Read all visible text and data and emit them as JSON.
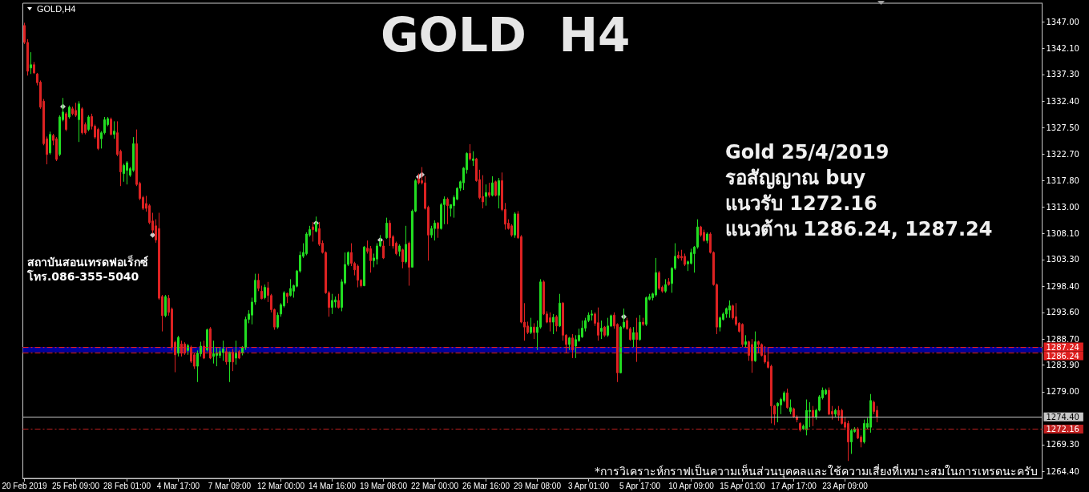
{
  "chart_data": {
    "type": "candlestick",
    "title": "GOLD  H4",
    "annotations": [
      "GOLD,H4",
      "Gold 25/4/2019",
      "รอสัญญาณ buy",
      "แนวรับ 1272.16",
      "แนวต้าน 1286.24, 1287.24",
      "สถาบันสอนเทรดฟอเร็กซ์",
      "โทร.086-355-5040",
      "*การวิเคราะห์กราฟเป็นความเห็นส่วนบุคคลและใช้ความเสี่ยงที่เหมาะสมในการเทรดนะครับ"
    ],
    "categories": [
      "20 Feb 2019",
      null,
      null,
      null,
      null,
      null,
      null,
      null,
      null,
      null,
      null,
      null,
      null,
      null,
      null,
      null,
      "25 Feb 09:00",
      null,
      null,
      null,
      null,
      null,
      null,
      null,
      null,
      null,
      null,
      null,
      null,
      null,
      null,
      null,
      "28 Feb 01:00",
      null,
      null,
      null,
      null,
      null,
      null,
      null,
      null,
      null,
      null,
      null,
      null,
      null,
      null,
      null,
      "4 Mar 17:00",
      null,
      null,
      null,
      null,
      null,
      null,
      null,
      null,
      null,
      null,
      null,
      null,
      null,
      null,
      null,
      "7 Mar 09:00",
      null,
      null,
      null,
      null,
      null,
      null,
      null,
      null,
      null,
      null,
      null,
      null,
      null,
      null,
      null,
      "12 Mar 00:00",
      null,
      null,
      null,
      null,
      null,
      null,
      null,
      null,
      null,
      null,
      null,
      null,
      null,
      null,
      null,
      "14 Mar 16:00",
      null,
      null,
      null,
      null,
      null,
      null,
      null,
      null,
      null,
      null,
      null,
      null,
      null,
      null,
      null,
      "19 Mar 08:00",
      null,
      null,
      null,
      null,
      null,
      null,
      null,
      null,
      null,
      null,
      null,
      null,
      null,
      null,
      null,
      "22 Mar 00:00",
      null,
      null,
      null,
      null,
      null,
      null,
      null,
      null,
      null,
      null,
      null,
      null,
      null,
      null,
      null,
      "26 Mar 16:00",
      null,
      null,
      null,
      null,
      null,
      null,
      null,
      null,
      null,
      null,
      null,
      null,
      null,
      null,
      null,
      "29 Mar 08:00",
      null,
      null,
      null,
      null,
      null,
      null,
      null,
      null,
      null,
      null,
      null,
      null,
      null,
      null,
      null,
      "3 Apr 01:00",
      null,
      null,
      null,
      null,
      null,
      null,
      null,
      null,
      null,
      null,
      null,
      null,
      null,
      null,
      null,
      "5 Apr 17:00",
      null,
      null,
      null,
      null,
      null,
      null,
      null,
      null,
      null,
      null,
      null,
      null,
      null,
      null,
      null,
      "10 Apr 09:00",
      null,
      null,
      null,
      null,
      null,
      null,
      null,
      null,
      null,
      null,
      null,
      null,
      null,
      null,
      null,
      "15 Apr 01:00",
      null,
      null,
      null,
      null,
      null,
      null,
      null,
      null,
      null,
      null,
      null,
      null,
      null,
      null,
      null,
      "17 Apr 17:00",
      null,
      null,
      null,
      null,
      null,
      null,
      null,
      null,
      null,
      null,
      null,
      null,
      null,
      null,
      null,
      "23 Apr 09:00",
      null,
      null,
      null,
      null,
      null,
      null,
      null,
      null,
      null,
      null,
      null,
      null,
      null,
      null,
      null,
      null,
      null,
      null,
      null,
      null,
      null,
      null,
      null,
      null,
      null,
      null,
      null,
      null,
      null,
      null,
      null,
      null,
      null,
      null,
      null,
      null,
      null,
      null,
      null,
      null,
      null,
      null,
      null,
      null,
      null,
      null,
      null,
      null,
      null,
      null,
      null,
      null,
      null,
      null,
      null,
      null,
      null,
      null,
      null,
      null,
      null
    ],
    "ohlc": [
      [
        1346.3,
        1346.8,
        1342.9,
        1343.2
      ],
      [
        1343.2,
        1343.8,
        1337.1,
        1337.9
      ],
      [
        1338.5,
        1341.4,
        1337.4,
        1339.1
      ],
      [
        1339.1,
        1339.6,
        1337.4,
        1337.6
      ],
      [
        1337.4,
        1337.6,
        1335.3,
        1335.8
      ],
      [
        1335.9,
        1336.2,
        1331.0,
        1331.3
      ],
      [
        1332.4,
        1332.8,
        1324.3,
        1324.6
      ],
      [
        1325.5,
        1325.9,
        1320.8,
        1322.6
      ],
      [
        1322.9,
        1326.8,
        1322.6,
        1326.3
      ],
      [
        1326.1,
        1326.4,
        1324.3,
        1325.2
      ],
      [
        1325.5,
        1325.8,
        1321.4,
        1321.7
      ],
      [
        1322.6,
        1329.8,
        1322.3,
        1329.5
      ],
      [
        1329.0,
        1333.0,
        1328.7,
        1330.4
      ],
      [
        1330.1,
        1330.4,
        1326.9,
        1327.2
      ],
      [
        1329.5,
        1331.6,
        1329.2,
        1331.3
      ],
      [
        1331.0,
        1331.4,
        1329.8,
        1330.1
      ],
      [
        1330.7,
        1332.1,
        1329.5,
        1329.8
      ],
      [
        1329.0,
        1332.4,
        1324.9,
        1331.9
      ],
      [
        1331.0,
        1331.3,
        1326.3,
        1326.6
      ],
      [
        1328.1,
        1328.5,
        1326.3,
        1326.6
      ],
      [
        1327.2,
        1329.8,
        1326.9,
        1329.5
      ],
      [
        1329.6,
        1330.1,
        1327.2,
        1327.8
      ],
      [
        1327.8,
        1328.1,
        1325.5,
        1325.8
      ],
      [
        1327.2,
        1327.5,
        1323.4,
        1323.7
      ],
      [
        1325.5,
        1326.9,
        1323.7,
        1326.6
      ],
      [
        1326.6,
        1329.5,
        1326.3,
        1329.0
      ],
      [
        1328.1,
        1329.5,
        1327.8,
        1329.2
      ],
      [
        1329.1,
        1329.4,
        1326.1,
        1326.3
      ],
      [
        1326.3,
        1328.7,
        1325.5,
        1326.9
      ],
      [
        1326.6,
        1328.7,
        1322.3,
        1322.6
      ],
      [
        1323.2,
        1323.5,
        1316.8,
        1319.4
      ],
      [
        1319.1,
        1320.9,
        1317.6,
        1320.6
      ],
      [
        1319.7,
        1321.4,
        1317.1,
        1321.1
      ],
      [
        1318.8,
        1320.3,
        1318.5,
        1320.0
      ],
      [
        1319.7,
        1325.8,
        1319.4,
        1324.6
      ],
      [
        1324.6,
        1327.2,
        1316.8,
        1317.1
      ],
      [
        1317.3,
        1317.6,
        1314.2,
        1314.5
      ],
      [
        1314.7,
        1315.0,
        1312.4,
        1312.7
      ],
      [
        1313.6,
        1315.0,
        1312.1,
        1312.7
      ],
      [
        1313.2,
        1313.5,
        1309.8,
        1310.1
      ],
      [
        1310.4,
        1311.9,
        1308.1,
        1308.7
      ],
      [
        1309.5,
        1310.7,
        1306.4,
        1306.9
      ],
      [
        1309.0,
        1311.9,
        1295.9,
        1296.2
      ],
      [
        1296.5,
        1296.8,
        1290.1,
        1293.0
      ],
      [
        1293.0,
        1296.8,
        1292.7,
        1296.5
      ],
      [
        1296.2,
        1296.8,
        1293.0,
        1293.6
      ],
      [
        1294.2,
        1294.5,
        1286.6,
        1287.2
      ],
      [
        1288.1,
        1288.4,
        1282.6,
        1285.8
      ],
      [
        1286.1,
        1289.3,
        1285.5,
        1289.0
      ],
      [
        1287.8,
        1288.4,
        1285.5,
        1286.1
      ],
      [
        1287.8,
        1288.1,
        1285.8,
        1286.1
      ],
      [
        1286.6,
        1287.8,
        1285.8,
        1287.5
      ],
      [
        1287.2,
        1287.5,
        1284.3,
        1284.6
      ],
      [
        1285.8,
        1286.1,
        1283.2,
        1283.7
      ],
      [
        1283.7,
        1286.6,
        1280.8,
        1286.1
      ],
      [
        1286.0,
        1288.2,
        1285.5,
        1287.4
      ],
      [
        1287.4,
        1288.4,
        1285.0,
        1285.2
      ],
      [
        1286.7,
        1290.6,
        1286.4,
        1290.4
      ],
      [
        1290.6,
        1290.9,
        1285.0,
        1285.2
      ],
      [
        1285.5,
        1288.4,
        1284.2,
        1286.0
      ],
      [
        1285.7,
        1287.2,
        1283.7,
        1286.2
      ],
      [
        1285.7,
        1287.2,
        1285.2,
        1286.4
      ],
      [
        1286.2,
        1288.4,
        1284.7,
        1286.9
      ],
      [
        1286.4,
        1287.2,
        1284.0,
        1284.5
      ],
      [
        1284.5,
        1286.4,
        1280.8,
        1286.3
      ],
      [
        1286.3,
        1286.9,
        1282.8,
        1284.5
      ],
      [
        1285.2,
        1288.4,
        1284.0,
        1286.2
      ],
      [
        1286.4,
        1286.7,
        1285.0,
        1285.2
      ],
      [
        1286.2,
        1287.4,
        1285.7,
        1287.2
      ],
      [
        1287.2,
        1292.8,
        1286.7,
        1292.3
      ],
      [
        1292.3,
        1294.0,
        1291.6,
        1293.3
      ],
      [
        1293.1,
        1296.3,
        1291.4,
        1295.5
      ],
      [
        1295.5,
        1300.7,
        1295.0,
        1299.5
      ],
      [
        1299.5,
        1300.7,
        1297.5,
        1298.0
      ],
      [
        1297.5,
        1298.5,
        1296.0,
        1296.1
      ],
      [
        1296.3,
        1298.7,
        1296.0,
        1298.2
      ],
      [
        1298.1,
        1299.2,
        1295.5,
        1296.7
      ],
      [
        1296.7,
        1297.0,
        1293.6,
        1294.1
      ],
      [
        1294.1,
        1294.3,
        1290.4,
        1290.9
      ],
      [
        1290.9,
        1293.6,
        1290.6,
        1293.1
      ],
      [
        1293.3,
        1295.3,
        1292.8,
        1295.0
      ],
      [
        1294.8,
        1297.5,
        1294.5,
        1297.2
      ],
      [
        1297.1,
        1297.2,
        1295.3,
        1296.5
      ],
      [
        1296.7,
        1299.7,
        1296.5,
        1298.0
      ],
      [
        1297.5,
        1298.7,
        1296.3,
        1298.5
      ],
      [
        1298.4,
        1301.4,
        1298.2,
        1301.2
      ],
      [
        1301.2,
        1304.8,
        1300.9,
        1304.1
      ],
      [
        1303.9,
        1306.3,
        1303.6,
        1304.6
      ],
      [
        1304.4,
        1308.3,
        1304.1,
        1308.0
      ],
      [
        1307.8,
        1309.5,
        1307.5,
        1308.8
      ],
      [
        1309.3,
        1310.2,
        1306.6,
        1308.8
      ],
      [
        1308.5,
        1311.2,
        1308.3,
        1310.0
      ],
      [
        1309.0,
        1310.2,
        1305.8,
        1306.1
      ],
      [
        1306.3,
        1306.8,
        1304.4,
        1304.6
      ],
      [
        1304.6,
        1304.8,
        1297.0,
        1297.2
      ],
      [
        1297.2,
        1297.5,
        1292.8,
        1294.5
      ],
      [
        1294.5,
        1297.0,
        1293.3,
        1295.8
      ],
      [
        1295.5,
        1296.5,
        1294.5,
        1295.9
      ],
      [
        1295.8,
        1297.0,
        1294.3,
        1294.5
      ],
      [
        1294.5,
        1299.7,
        1293.8,
        1299.2
      ],
      [
        1299.0,
        1304.6,
        1298.7,
        1302.4
      ],
      [
        1302.4,
        1304.8,
        1302.1,
        1304.6
      ],
      [
        1304.6,
        1306.3,
        1302.1,
        1302.6
      ],
      [
        1302.6,
        1302.9,
        1300.4,
        1301.4
      ],
      [
        1302.1,
        1302.4,
        1298.2,
        1299.5
      ],
      [
        1299.5,
        1299.7,
        1298.2,
        1298.5
      ],
      [
        1298.5,
        1305.8,
        1298.4,
        1305.6
      ],
      [
        1305.4,
        1306.8,
        1304.4,
        1304.8
      ],
      [
        1305.3,
        1305.8,
        1300.9,
        1303.1
      ],
      [
        1303.1,
        1304.4,
        1301.9,
        1303.6
      ],
      [
        1303.4,
        1306.3,
        1302.4,
        1305.8
      ],
      [
        1305.8,
        1307.8,
        1305.6,
        1306.6
      ],
      [
        1305.8,
        1306.8,
        1303.4,
        1303.6
      ],
      [
        1307.3,
        1311.0,
        1307.1,
        1310.0
      ],
      [
        1310.0,
        1310.5,
        1305.8,
        1307.3
      ],
      [
        1307.5,
        1307.8,
        1305.3,
        1305.8
      ],
      [
        1306.3,
        1306.6,
        1304.1,
        1304.4
      ],
      [
        1304.8,
        1306.1,
        1303.9,
        1305.8
      ],
      [
        1305.1,
        1305.3,
        1301.7,
        1302.9
      ],
      [
        1302.9,
        1309.5,
        1302.6,
        1306.1
      ],
      [
        1306.3,
        1306.6,
        1298.5,
        1301.9
      ],
      [
        1301.9,
        1312.5,
        1301.9,
        1312.2
      ],
      [
        1312.2,
        1318.1,
        1312.0,
        1317.8
      ],
      [
        1318.1,
        1319.1,
        1317.1,
        1317.4
      ],
      [
        1317.8,
        1320.3,
        1317.1,
        1317.4
      ],
      [
        1317.4,
        1318.6,
        1312.5,
        1312.7
      ],
      [
        1312.9,
        1313.2,
        1303.1,
        1307.8
      ],
      [
        1307.8,
        1309.5,
        1307.3,
        1309.0
      ],
      [
        1309.0,
        1310.5,
        1306.8,
        1310.0
      ],
      [
        1310.0,
        1310.2,
        1307.3,
        1309.0
      ],
      [
        1309.0,
        1313.7,
        1308.8,
        1313.4
      ],
      [
        1313.4,
        1314.9,
        1309.8,
        1314.4
      ],
      [
        1314.4,
        1314.7,
        1309.8,
        1313.2
      ],
      [
        1312.7,
        1313.4,
        1311.2,
        1313.4
      ],
      [
        1313.2,
        1315.1,
        1311.0,
        1314.7
      ],
      [
        1314.4,
        1316.6,
        1314.2,
        1316.4
      ],
      [
        1316.4,
        1317.8,
        1315.9,
        1317.6
      ],
      [
        1317.4,
        1320.3,
        1316.1,
        1320.1
      ],
      [
        1319.8,
        1323.0,
        1319.1,
        1322.8
      ],
      [
        1322.8,
        1324.5,
        1321.5,
        1321.8
      ],
      [
        1321.5,
        1323.2,
        1320.5,
        1321.8
      ],
      [
        1321.8,
        1322.0,
        1317.6,
        1317.8
      ],
      [
        1318.0,
        1319.8,
        1314.4,
        1314.7
      ],
      [
        1314.9,
        1318.8,
        1312.7,
        1313.9
      ],
      [
        1314.9,
        1317.1,
        1313.2,
        1315.6
      ],
      [
        1315.6,
        1317.4,
        1314.7,
        1315.1
      ],
      [
        1315.1,
        1318.6,
        1314.9,
        1317.4
      ],
      [
        1317.6,
        1317.8,
        1314.9,
        1315.1
      ],
      [
        1315.1,
        1318.3,
        1312.7,
        1317.8
      ],
      [
        1317.8,
        1319.3,
        1312.2,
        1312.5
      ],
      [
        1312.5,
        1313.7,
        1308.8,
        1309.8
      ],
      [
        1310.0,
        1310.7,
        1308.8,
        1309.0
      ],
      [
        1309.5,
        1309.8,
        1307.5,
        1307.8
      ],
      [
        1307.8,
        1312.0,
        1307.3,
        1311.7
      ],
      [
        1311.7,
        1312.2,
        1307.1,
        1307.3
      ],
      [
        1307.5,
        1307.8,
        1291.6,
        1291.8
      ],
      [
        1291.8,
        1295.3,
        1288.4,
        1290.9
      ],
      [
        1291.1,
        1291.9,
        1289.6,
        1289.9
      ],
      [
        1289.9,
        1292.6,
        1289.6,
        1290.9
      ],
      [
        1290.9,
        1291.6,
        1288.7,
        1289.9
      ],
      [
        1289.9,
        1292.1,
        1286.7,
        1290.9
      ],
      [
        1290.9,
        1299.7,
        1290.6,
        1299.2
      ],
      [
        1299.2,
        1299.5,
        1293.1,
        1293.3
      ],
      [
        1293.3,
        1293.8,
        1291.6,
        1291.8
      ],
      [
        1292.6,
        1293.6,
        1290.1,
        1291.8
      ],
      [
        1291.8,
        1293.3,
        1289.6,
        1292.7
      ],
      [
        1292.8,
        1293.1,
        1290.1,
        1291.1
      ],
      [
        1291.1,
        1297.0,
        1290.9,
        1295.3
      ],
      [
        1295.3,
        1295.5,
        1288.4,
        1289.4
      ],
      [
        1289.4,
        1289.6,
        1286.2,
        1287.7
      ],
      [
        1287.7,
        1289.1,
        1286.7,
        1288.9
      ],
      [
        1288.9,
        1289.6,
        1285.2,
        1286.7
      ],
      [
        1287.4,
        1289.4,
        1285.2,
        1288.6
      ],
      [
        1288.4,
        1290.6,
        1288.2,
        1289.4
      ],
      [
        1289.1,
        1292.1,
        1288.9,
        1290.7
      ],
      [
        1290.7,
        1292.6,
        1290.1,
        1292.1
      ],
      [
        1292.1,
        1293.6,
        1291.8,
        1293.1
      ],
      [
        1293.1,
        1294.0,
        1292.1,
        1293.3
      ],
      [
        1293.3,
        1293.6,
        1291.1,
        1291.6
      ],
      [
        1291.7,
        1294.5,
        1288.4,
        1289.4
      ],
      [
        1290.1,
        1292.1,
        1288.7,
        1290.7
      ],
      [
        1290.9,
        1291.1,
        1289.1,
        1289.4
      ],
      [
        1289.4,
        1292.6,
        1289.1,
        1291.1
      ],
      [
        1291.1,
        1293.2,
        1290.9,
        1293.0
      ],
      [
        1293.1,
        1293.6,
        1290.6,
        1291.1
      ],
      [
        1291.4,
        1291.6,
        1280.8,
        1282.5
      ],
      [
        1282.5,
        1291.1,
        1282.4,
        1290.9
      ],
      [
        1290.9,
        1294.3,
        1290.6,
        1291.8
      ],
      [
        1292.1,
        1292.6,
        1290.4,
        1290.6
      ],
      [
        1290.6,
        1290.9,
        1288.4,
        1288.6
      ],
      [
        1288.6,
        1290.9,
        1287.2,
        1289.9
      ],
      [
        1289.9,
        1292.6,
        1284.5,
        1288.6
      ],
      [
        1288.6,
        1293.1,
        1288.4,
        1291.8
      ],
      [
        1291.8,
        1292.6,
        1291.1,
        1291.4
      ],
      [
        1291.4,
        1296.5,
        1291.1,
        1296.3
      ],
      [
        1296.0,
        1297.0,
        1295.8,
        1296.5
      ],
      [
        1296.3,
        1297.2,
        1295.8,
        1297.0
      ],
      [
        1296.8,
        1303.6,
        1296.5,
        1300.9
      ],
      [
        1300.9,
        1301.2,
        1297.7,
        1298.0
      ],
      [
        1298.2,
        1298.5,
        1297.2,
        1297.5
      ],
      [
        1297.5,
        1299.7,
        1297.2,
        1298.7
      ],
      [
        1299.2,
        1299.9,
        1298.5,
        1298.7
      ],
      [
        1298.9,
        1301.9,
        1297.2,
        1301.7
      ],
      [
        1301.7,
        1306.3,
        1301.4,
        1303.9
      ],
      [
        1304.1,
        1304.8,
        1303.4,
        1303.6
      ],
      [
        1303.9,
        1305.1,
        1303.1,
        1303.6
      ],
      [
        1303.9,
        1304.4,
        1302.1,
        1302.4
      ],
      [
        1302.5,
        1303.1,
        1301.2,
        1302.9
      ],
      [
        1302.6,
        1305.3,
        1302.4,
        1304.6
      ],
      [
        1304.4,
        1305.8,
        1300.9,
        1305.6
      ],
      [
        1305.6,
        1310.7,
        1305.3,
        1309.3
      ],
      [
        1309.3,
        1309.5,
        1307.5,
        1307.8
      ],
      [
        1308.3,
        1308.8,
        1306.6,
        1306.8
      ],
      [
        1306.8,
        1308.3,
        1306.3,
        1308.0
      ],
      [
        1308.0,
        1308.3,
        1304.4,
        1304.6
      ],
      [
        1304.6,
        1304.8,
        1298.5,
        1298.7
      ],
      [
        1298.7,
        1298.9,
        1289.6,
        1290.9
      ],
      [
        1290.9,
        1292.8,
        1290.1,
        1292.6
      ],
      [
        1292.3,
        1293.6,
        1292.1,
        1293.3
      ],
      [
        1293.3,
        1294.5,
        1292.6,
        1294.3
      ],
      [
        1294.0,
        1295.8,
        1292.6,
        1294.8
      ],
      [
        1294.8,
        1295.0,
        1292.3,
        1292.6
      ],
      [
        1292.8,
        1295.3,
        1291.1,
        1291.4
      ],
      [
        1291.6,
        1291.8,
        1289.9,
        1290.1
      ],
      [
        1291.4,
        1291.6,
        1287.2,
        1287.7
      ],
      [
        1287.7,
        1289.4,
        1287.2,
        1288.2
      ],
      [
        1288.2,
        1288.4,
        1284.7,
        1285.7
      ],
      [
        1287.7,
        1288.7,
        1282.5,
        1284.7
      ],
      [
        1284.7,
        1290.1,
        1284.5,
        1288.2
      ],
      [
        1288.2,
        1288.4,
        1286.2,
        1287.7
      ],
      [
        1287.7,
        1287.9,
        1285.5,
        1285.7
      ],
      [
        1285.7,
        1287.4,
        1284.2,
        1284.5
      ],
      [
        1284.5,
        1287.2,
        1283.3,
        1283.5
      ],
      [
        1283.7,
        1284.0,
        1273.2,
        1276.4
      ],
      [
        1276.4,
        1276.6,
        1272.9,
        1274.9
      ],
      [
        1276.4,
        1277.1,
        1273.4,
        1276.9
      ],
      [
        1276.6,
        1277.9,
        1274.9,
        1277.6
      ],
      [
        1277.4,
        1279.1,
        1277.1,
        1278.8
      ],
      [
        1278.8,
        1279.6,
        1275.9,
        1276.1
      ],
      [
        1275.4,
        1277.6,
        1274.9,
        1276.1
      ],
      [
        1275.9,
        1276.1,
        1274.2,
        1274.4
      ],
      [
        1274.4,
        1274.7,
        1273.4,
        1273.9
      ],
      [
        1273.2,
        1273.4,
        1271.7,
        1272.0
      ],
      [
        1272.2,
        1273.0,
        1272.0,
        1272.7
      ],
      [
        1272.0,
        1277.6,
        1271.0,
        1275.6
      ],
      [
        1275.4,
        1277.1,
        1272.5,
        1275.6
      ],
      [
        1275.6,
        1276.4,
        1272.7,
        1274.4
      ],
      [
        1274.4,
        1275.9,
        1273.9,
        1275.6
      ],
      [
        1275.6,
        1278.4,
        1275.4,
        1278.1
      ],
      [
        1277.9,
        1279.8,
        1277.6,
        1279.3
      ],
      [
        1278.6,
        1279.6,
        1278.4,
        1279.3
      ],
      [
        1279.3,
        1279.8,
        1274.7,
        1274.9
      ],
      [
        1275.4,
        1276.4,
        1273.9,
        1274.9
      ],
      [
        1274.9,
        1275.9,
        1274.4,
        1275.6
      ],
      [
        1275.6,
        1276.4,
        1273.7,
        1274.7
      ],
      [
        1275.6,
        1275.9,
        1273.0,
        1273.2
      ],
      [
        1273.4,
        1274.4,
        1272.0,
        1272.5
      ],
      [
        1273.2,
        1273.7,
        1266.3,
        1269.8
      ],
      [
        1269.8,
        1272.2,
        1267.6,
        1271.9
      ],
      [
        1271.7,
        1272.5,
        1271.5,
        1272.2
      ],
      [
        1272.2,
        1272.5,
        1270.3,
        1270.5
      ],
      [
        1270.7,
        1271.0,
        1268.8,
        1269.8
      ],
      [
        1269.8,
        1273.9,
        1269.5,
        1273.2
      ],
      [
        1272.5,
        1274.2,
        1272.2,
        1273.2
      ],
      [
        1272.5,
        1278.6,
        1271.5,
        1277.4
      ],
      [
        1277.1,
        1277.4,
        1274.9,
        1275.4
      ],
      [
        1275.6,
        1276.4,
        1273.4,
        1274.4
      ],
      null,
      null,
      null,
      null,
      null,
      null,
      null,
      null,
      null,
      null,
      null,
      null,
      null,
      null,
      null,
      null,
      null,
      null,
      null,
      null,
      null,
      null,
      null,
      null,
      null,
      null,
      null,
      null,
      null,
      null,
      null,
      null,
      null,
      null,
      null,
      null,
      null,
      null,
      null,
      null,
      null,
      null,
      null,
      null,
      null,
      null,
      null,
      null,
      null,
      null,
      null
    ],
    "colors": [
      "#dd2222",
      "#dd2222",
      "#22dd22",
      "#dd2222",
      "#dd2222",
      "#dd2222",
      "#dd2222",
      "#dd2222",
      "#22dd22",
      "#dd2222",
      "#dd2222",
      "#22dd22",
      "#22dd22",
      "#dd2222",
      "#22dd22",
      "#dd2222",
      "#dd2222",
      "#22dd22",
      "#dd2222",
      "#dd2222",
      "#22dd22",
      "#dd2222",
      "#dd2222",
      "#dd2222",
      "#22dd22",
      "#22dd22",
      "#22dd22",
      "#dd2222",
      "#22dd22",
      "#dd2222",
      "#dd2222",
      "#22dd22",
      "#22dd22",
      "#22dd22",
      "#22dd22",
      "#dd2222",
      "#dd2222",
      "#dd2222",
      "#dd2222",
      "#dd2222",
      "#dd2222",
      "#dd2222",
      "#dd2222",
      "#dd2222",
      "#22dd22",
      "#dd2222",
      "#dd2222",
      "#dd2222",
      "#22dd22",
      "#dd2222",
      "#dd2222",
      "#22dd22",
      "#dd2222",
      "#dd2222",
      "#22dd22",
      "#22dd22",
      "#dd2222",
      "#22dd22",
      "#dd2222",
      "#22dd22",
      "#22dd22",
      "#22dd22",
      "#22dd22",
      "#dd2222",
      "#22dd22",
      "#dd2222",
      "#22dd22",
      "#dd2222",
      "#22dd22",
      "#22dd22",
      "#22dd22",
      "#22dd22",
      "#22dd22",
      "#dd2222",
      "#dd2222",
      "#22dd22",
      "#dd2222",
      "#dd2222",
      "#dd2222",
      "#22dd22",
      "#22dd22",
      "#22dd22",
      "#dd2222",
      "#22dd22",
      "#22dd22",
      "#22dd22",
      "#22dd22",
      "#22dd22",
      "#22dd22",
      "#22dd22",
      "#dd2222",
      "#22dd22",
      "#dd2222",
      "#dd2222",
      "#dd2222",
      "#dd2222",
      "#22dd22",
      "#22dd22",
      "#dd2222",
      "#22dd22",
      "#22dd22",
      "#22dd22",
      "#dd2222",
      "#dd2222",
      "#dd2222",
      "#dd2222",
      "#22dd22",
      "#dd2222",
      "#dd2222",
      "#22dd22",
      "#22dd22",
      "#22dd22",
      "#dd2222",
      "#22dd22",
      "#dd2222",
      "#dd2222",
      "#dd2222",
      "#22dd22",
      "#dd2222",
      "#22dd22",
      "#dd2222",
      "#22dd22",
      "#22dd22",
      "#dd2222",
      "#dd2222",
      "#dd2222",
      "#dd2222",
      "#22dd22",
      "#22dd22",
      "#dd2222",
      "#22dd22",
      "#22dd22",
      "#dd2222",
      "#22dd22",
      "#22dd22",
      "#22dd22",
      "#22dd22",
      "#22dd22",
      "#22dd22",
      "#dd2222",
      "#22dd22",
      "#dd2222",
      "#dd2222",
      "#dd2222",
      "#22dd22",
      "#dd2222",
      "#22dd22",
      "#dd2222",
      "#22dd22",
      "#dd2222",
      "#dd2222",
      "#dd2222",
      "#dd2222",
      "#22dd22",
      "#dd2222",
      "#dd2222",
      "#dd2222",
      "#dd2222",
      "#22dd22",
      "#dd2222",
      "#22dd22",
      "#22dd22",
      "#dd2222",
      "#dd2222",
      "#dd2222",
      "#22dd22",
      "#dd2222",
      "#22dd22",
      "#dd2222",
      "#dd2222",
      "#22dd22",
      "#dd2222",
      "#22dd22",
      "#22dd22",
      "#22dd22",
      "#22dd22",
      "#22dd22",
      "#22dd22",
      "#dd2222",
      "#dd2222",
      "#22dd22",
      "#dd2222",
      "#22dd22",
      "#22dd22",
      "#dd2222",
      "#dd2222",
      "#22dd22",
      "#22dd22",
      "#dd2222",
      "#dd2222",
      "#22dd22",
      "#dd2222",
      "#22dd22",
      "#dd2222",
      "#22dd22",
      "#22dd22",
      "#22dd22",
      "#22dd22",
      "#dd2222",
      "#dd2222",
      "#22dd22",
      "#dd2222",
      "#22dd22",
      "#22dd22",
      "#dd2222",
      "#dd2222",
      "#dd2222",
      "#22dd22",
      "#22dd22",
      "#22dd22",
      "#22dd22",
      "#dd2222",
      "#dd2222",
      "#22dd22",
      "#dd2222",
      "#dd2222",
      "#dd2222",
      "#22dd22",
      "#22dd22",
      "#22dd22",
      "#22dd22",
      "#dd2222",
      "#dd2222",
      "#dd2222",
      "#dd2222",
      "#22dd22",
      "#dd2222",
      "#dd2222",
      "#22dd22",
      "#dd2222",
      "#dd2222",
      "#dd2222",
      "#dd2222",
      "#dd2222",
      "#dd2222",
      "#22dd22",
      "#22dd22",
      "#22dd22",
      "#dd2222",
      "#22dd22",
      "#dd2222",
      "#dd2222",
      "#dd2222",
      "#22dd22",
      "#22dd22",
      "#22dd22",
      "#dd2222",
      "#22dd22",
      "#22dd22",
      "#22dd22",
      "#22dd22",
      "#dd2222",
      "#dd2222",
      "#22dd22",
      "#dd2222",
      "#dd2222",
      "#dd2222",
      "#dd2222",
      "#22dd22",
      "#22dd22",
      "#dd2222",
      "#dd2222",
      "#22dd22",
      "#22dd22",
      "#22dd22",
      "#dd2222",
      "#dd2222",
      null,
      null,
      null,
      null,
      null,
      null,
      null,
      null,
      null,
      null,
      null,
      null,
      null,
      null,
      null,
      null,
      null,
      null,
      null,
      null,
      null,
      null,
      null,
      null,
      null,
      null,
      null,
      null,
      null,
      null,
      null,
      null,
      null,
      null,
      null,
      null,
      null,
      null,
      null,
      null,
      null,
      null,
      null,
      null,
      null,
      null,
      null,
      null,
      null,
      null,
      null
    ],
    "series": [
      {
        "type": "scatter",
        "color": "#ffffff",
        "marker": "diamond",
        "values": [
          null,
          null,
          null,
          null,
          null,
          null,
          null,
          null,
          null,
          null,
          null,
          null,
          1331.4,
          null,
          null,
          null,
          null,
          null,
          null,
          null,
          null,
          null,
          null,
          null,
          null,
          null,
          null,
          null,
          null,
          null,
          null,
          null,
          null,
          null,
          null,
          null,
          null,
          null,
          null,
          null,
          1307.8,
          null,
          null,
          null,
          null,
          null,
          null,
          null,
          null,
          null,
          null,
          null,
          null,
          null,
          null,
          null,
          null,
          null,
          null,
          null,
          null,
          null,
          null,
          null,
          null,
          null,
          null,
          null,
          null,
          null,
          null,
          null,
          null,
          null,
          null,
          null,
          null,
          null,
          null,
          null,
          null,
          null,
          null,
          null,
          null,
          null,
          null,
          null,
          null,
          null,
          null,
          1310.0,
          null,
          null,
          null,
          null,
          null,
          null,
          null,
          null,
          null,
          null,
          null,
          null,
          null,
          null,
          null,
          null,
          null,
          null,
          null,
          1306.9,
          null,
          null,
          null,
          null,
          null,
          null,
          null,
          null,
          null,
          null,
          null,
          1318.5,
          1318.9,
          null,
          null,
          null,
          null,
          null,
          null,
          null,
          null,
          null,
          null,
          null,
          null,
          null,
          null,
          null,
          null,
          null,
          null,
          null,
          null,
          null,
          null,
          null,
          null,
          null,
          null,
          null,
          null,
          null,
          null,
          null,
          null,
          null,
          null,
          null,
          null,
          null,
          null,
          null,
          null,
          null,
          null,
          null,
          null,
          null,
          null,
          null,
          null,
          null,
          null,
          null,
          null,
          null,
          null,
          null,
          null,
          null,
          null,
          null,
          null,
          null,
          null,
          1292.8,
          null,
          null,
          null,
          null,
          null,
          null,
          null,
          null,
          null,
          null,
          null,
          null,
          null,
          null,
          null,
          null,
          null,
          null,
          null,
          null,
          null,
          null,
          null,
          null,
          null,
          null,
          null,
          null,
          null,
          null,
          null,
          null,
          null,
          null,
          null,
          null,
          null,
          null,
          null,
          null,
          null,
          null,
          null,
          null,
          null,
          null,
          null,
          null,
          null,
          null,
          null,
          null,
          null,
          null,
          null,
          null,
          null,
          null,
          null,
          null,
          null,
          null,
          null,
          null,
          null,
          null,
          null,
          null,
          null,
          null,
          null,
          null,
          null,
          null,
          null,
          null,
          null,
          null,
          null,
          null,
          null,
          null,
          null,
          null,
          null,
          null,
          null,
          null,
          null,
          null,
          null,
          null,
          null,
          null,
          null,
          null,
          null,
          null,
          null,
          null,
          null,
          null,
          null,
          null,
          null,
          null,
          null,
          null,
          null,
          null,
          null,
          null,
          null,
          null,
          null,
          null,
          null,
          null,
          null,
          null,
          null,
          null,
          null,
          null,
          null,
          null,
          null,
          null,
          null,
          null
        ]
      }
    ],
    "ylim": [
      1263.1,
      1350.4
    ],
    "yticks": [
      {
        "value": 1347,
        "label": "1347.00"
      },
      {
        "value": 1342.1,
        "label": "1342.10"
      },
      {
        "value": 1337.3,
        "label": "1337.30"
      },
      {
        "value": 1332.4,
        "label": "1332.40"
      },
      {
        "value": 1327.5,
        "label": "1327.50"
      },
      {
        "value": 1322.7,
        "label": "1322.70"
      },
      {
        "value": 1317.8,
        "label": "1317.80"
      },
      {
        "value": 1313,
        "label": "1313.00"
      },
      {
        "value": 1308.1,
        "label": "1308.10"
      },
      {
        "value": 1303.3,
        "label": "1303.30"
      },
      {
        "value": 1298.4,
        "label": "1298.40"
      },
      {
        "value": 1293.6,
        "label": "1293.60"
      },
      {
        "value": 1288.7,
        "label": "1288.70"
      },
      {
        "value": 1283.9,
        "label": "1283.90"
      },
      {
        "value": 1279,
        "label": "1279.00"
      },
      {
        "value": 1269.3,
        "label": "1269.30"
      },
      {
        "value": 1264.4,
        "label": "1264.40"
      }
    ],
    "ref_lines": [
      {
        "axis": "y",
        "value": 1287.24,
        "label": "1287.24",
        "color": "#e02020",
        "line_style": "dashed"
      },
      {
        "axis": "y",
        "value": 1286.24,
        "label": "1286.24",
        "color": "#e02020",
        "line_style": "dashed"
      },
      {
        "axis": "y",
        "value": 1274.4,
        "label": "1274.40",
        "color": "#c8c8c8",
        "line_style": "solid"
      },
      {
        "axis": "y",
        "value": 1272.16,
        "label": "1272.16",
        "color": "#c02020",
        "line_style": "dashed"
      }
    ],
    "bands": [
      {
        "axis": "y",
        "from": 1286.24,
        "to": 1287.24,
        "color": "#000099"
      }
    ]
  }
}
